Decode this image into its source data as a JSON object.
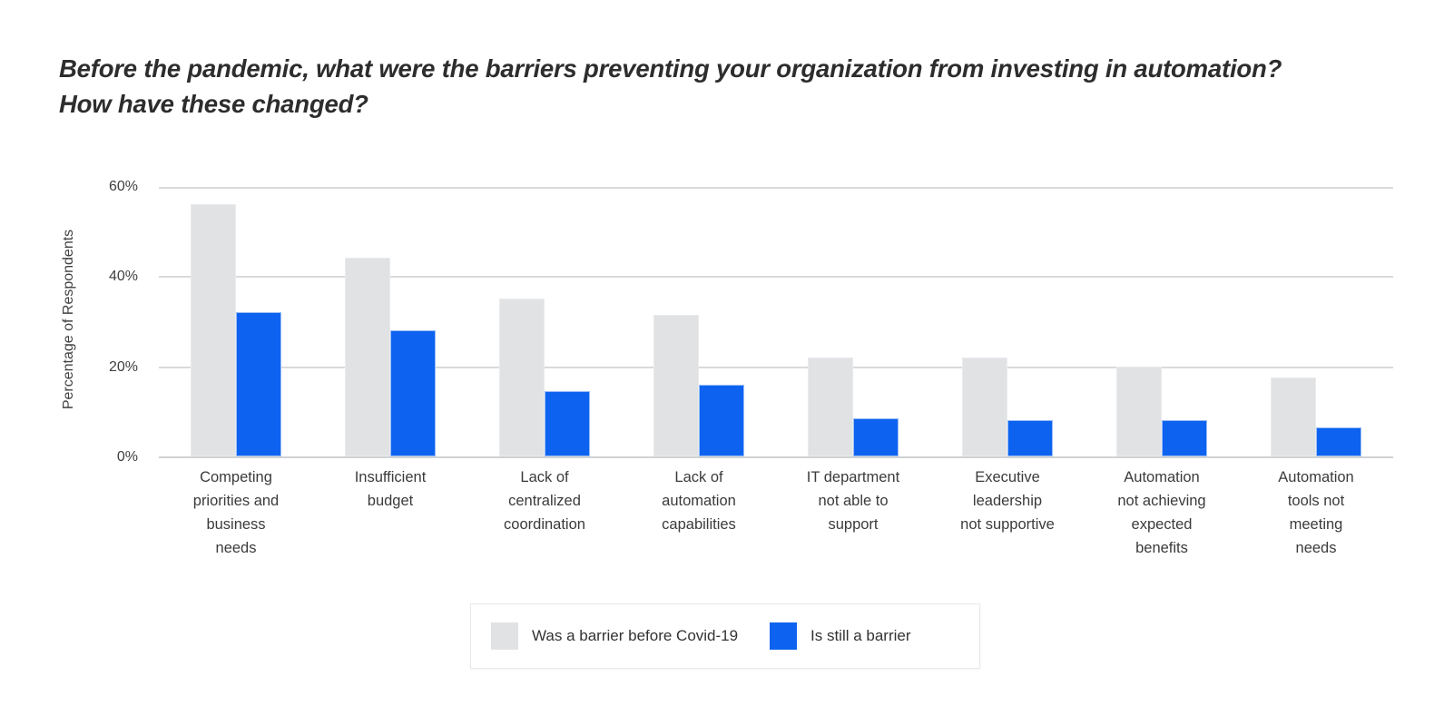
{
  "title": {
    "line1": "Before the pandemic, what were the barriers preventing your organization from investing in automation?",
    "line2": "How have these changed?"
  },
  "chart_data": {
    "type": "bar",
    "title": "Before the pandemic, what were the barriers preventing your organization from investing in automation? How have these changed?",
    "xlabel": "",
    "ylabel": "Percentage of Respondents",
    "ylim": [
      0,
      60
    ],
    "ytick_labels": [
      "0%",
      "20%",
      "40%",
      "60%"
    ],
    "grid": true,
    "legend_position": "bottom",
    "categories": [
      "Competing priorities and business needs",
      "Insufficient budget",
      "Lack of centralized coordination",
      "Lack of automation capabilities",
      "IT department not able to support",
      "Executive leadership not supportive",
      "Automation not achieving expected benefits",
      "Automation tools not meeting needs"
    ],
    "category_label_lines": [
      [
        "Competing",
        "priorities and",
        "business",
        "needs"
      ],
      [
        "Insufficient",
        "budget"
      ],
      [
        "Lack of",
        "centralized",
        "coordination"
      ],
      [
        "Lack of",
        "automation",
        "capabilities"
      ],
      [
        "IT department",
        "not able to",
        "support"
      ],
      [
        "Executive",
        "leadership",
        "not supportive"
      ],
      [
        "Automation",
        "not achieving",
        "expected",
        "benefits"
      ],
      [
        "Automation",
        "tools not",
        "meeting",
        "needs"
      ]
    ],
    "series": [
      {
        "name": "Was a barrier before Covid-19",
        "color": "#e1e2e4",
        "values": [
          56,
          44,
          35,
          31.5,
          22,
          22,
          20,
          17.5
        ]
      },
      {
        "name": "Is still a barrier",
        "color": "#0d63f0",
        "values": [
          32,
          28,
          14.5,
          16,
          8.5,
          8,
          8,
          6.5
        ]
      }
    ]
  },
  "colors": {
    "bar_before": "#e1e2e4",
    "bar_still": "#0d63f0",
    "gridline": "#dadada",
    "title_text": "#2d2d2d",
    "axis_text": "#3f3f3f"
  }
}
